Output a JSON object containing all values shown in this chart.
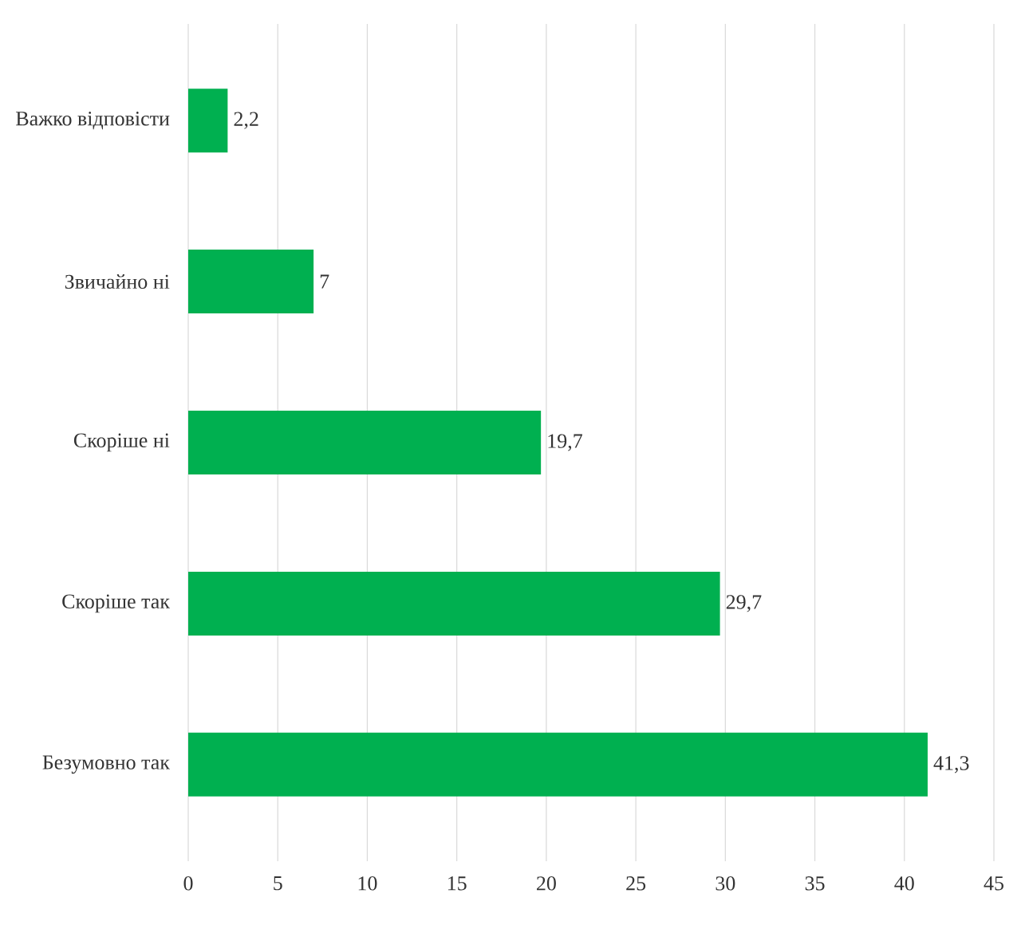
{
  "chart_data": {
    "type": "bar",
    "orientation": "horizontal",
    "categories": [
      "Важко відповісти",
      "Звичайно ні",
      "Скоріше ні",
      "Скоріше так",
      "Безумовно так"
    ],
    "values": [
      2.2,
      7,
      19.7,
      29.7,
      41.3
    ],
    "value_labels": [
      "2,2",
      "7",
      "19,7",
      "29,7",
      "41,3"
    ],
    "color": "#00b050",
    "xlim": [
      0,
      45
    ],
    "xticks": [
      0,
      5,
      10,
      15,
      20,
      25,
      30,
      35,
      40,
      45
    ],
    "grid": "x"
  }
}
